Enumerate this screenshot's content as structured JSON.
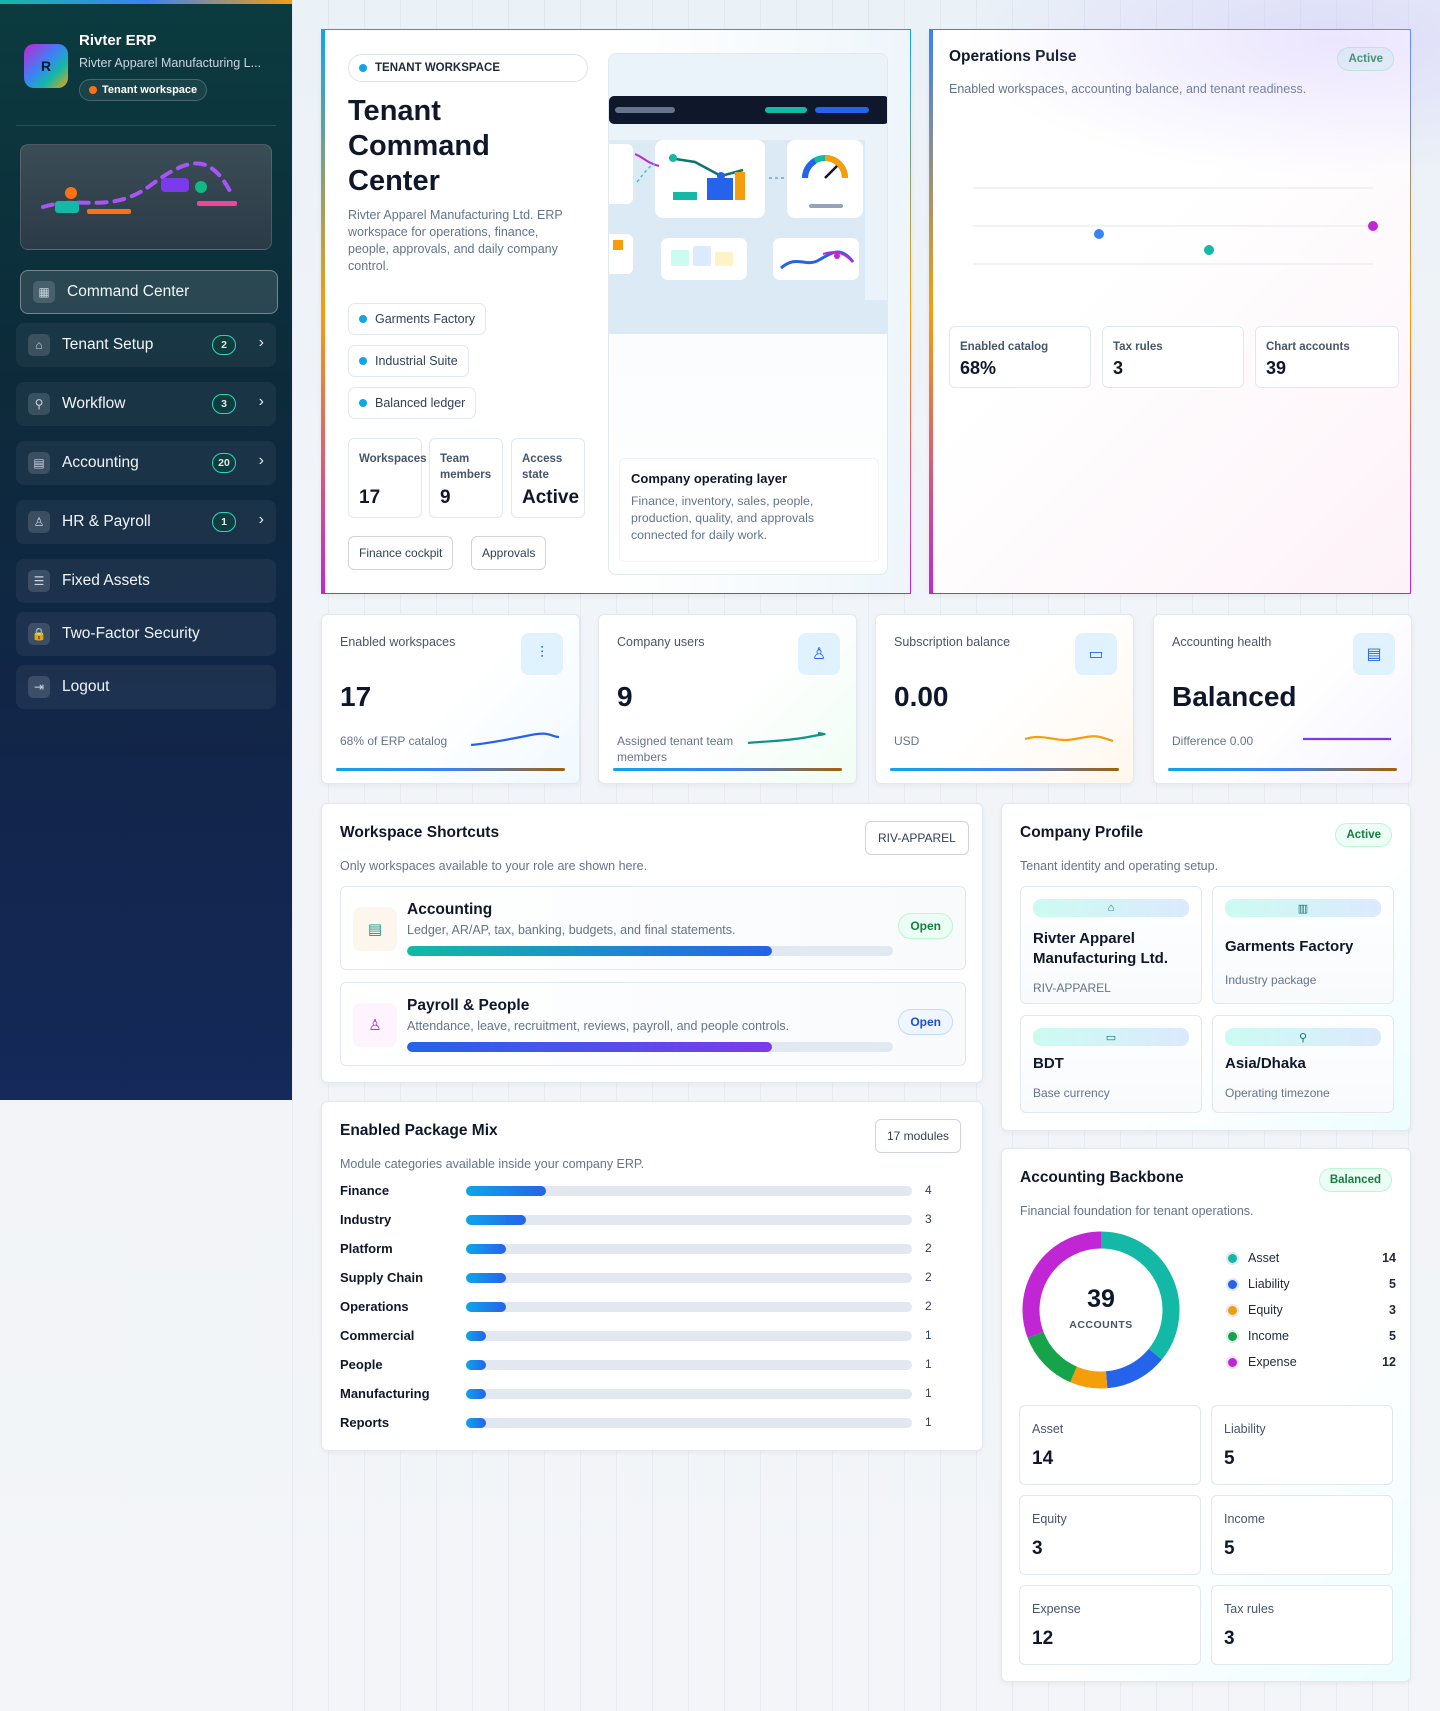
{
  "sidebar": {
    "brand_title": "Rivter ERP",
    "brand_subtitle": "Rivter Apparel Manufacturing L...",
    "logo_letter": "R",
    "tenant_pill": "Tenant workspace",
    "items": [
      {
        "label": "Command Center",
        "icon": "grid-icon",
        "active": true
      },
      {
        "label": "Tenant Setup",
        "icon": "building-icon",
        "badge": "2"
      },
      {
        "label": "Workflow",
        "icon": "workflow-icon",
        "badge": "3"
      },
      {
        "label": "Accounting",
        "icon": "ledger-icon",
        "badge": "20"
      },
      {
        "label": "HR & Payroll",
        "icon": "user-icon",
        "badge": "1"
      },
      {
        "label": "Fixed Assets",
        "icon": "asset-icon"
      },
      {
        "label": "Two-Factor Security",
        "icon": "lock-icon"
      },
      {
        "label": "Logout",
        "icon": "logout-icon"
      }
    ]
  },
  "hero": {
    "eyebrow": "TENANT WORKSPACE",
    "title": "Tenant Command Center",
    "description": "Rivter Apparel Manufacturing Ltd. ERP workspace for operations, finance, people, approvals, and daily company control.",
    "chips": [
      "Garments Factory",
      "Industrial Suite",
      "Balanced ledger"
    ],
    "stats": [
      {
        "label": "Workspaces",
        "value": "17"
      },
      {
        "label": "Team members",
        "value": "9"
      },
      {
        "label": "Access state",
        "value": "Active"
      }
    ],
    "buttons": [
      "Finance cockpit",
      "Approvals"
    ],
    "layer_title": "Company operating layer",
    "layer_text": "Finance, inventory, sales, people, production, quality, and approvals connected for daily work."
  },
  "pulse": {
    "title": "Operations Pulse",
    "status": "Active",
    "subtitle": "Enabled workspaces, accounting balance, and tenant readiness.",
    "stats": [
      {
        "label": "Enabled catalog",
        "value": "68%"
      },
      {
        "label": "Tax rules",
        "value": "3"
      },
      {
        "label": "Chart accounts",
        "value": "39"
      }
    ]
  },
  "kpis": [
    {
      "label": "Enabled workspaces",
      "value": "17",
      "foot": "68% of ERP catalog",
      "icon": "sliders-icon",
      "spark": "#2563eb"
    },
    {
      "label": "Company users",
      "value": "9",
      "foot": "Assigned tenant team members",
      "icon": "users-icon",
      "spark": "#0d9488"
    },
    {
      "label": "Subscription balance",
      "value": "0.00",
      "foot": "USD",
      "icon": "card-icon",
      "spark": "#f59e0b"
    },
    {
      "label": "Accounting health",
      "value": "Balanced",
      "foot": "Difference 0.00",
      "icon": "book-icon",
      "spark": "#7c3aed"
    }
  ],
  "shortcuts": {
    "title": "Workspace Shortcuts",
    "code": "RIV-APPAREL",
    "subtitle": "Only workspaces available to your role are shown here.",
    "items": [
      {
        "title": "Accounting",
        "desc": "Ledger, AR/AP, tax, banking, budgets, and final statements.",
        "action": "Open",
        "progress": 0.75
      },
      {
        "title": "Payroll & People",
        "desc": "Attendance, leave, recruitment, reviews, payroll, and people controls.",
        "action": "Open",
        "progress": 0.75
      }
    ]
  },
  "packages": {
    "title": "Enabled Package Mix",
    "count": "17 modules",
    "subtitle": "Module categories available inside your company ERP.",
    "rows": [
      {
        "name": "Finance",
        "value": 4
      },
      {
        "name": "Industry",
        "value": 3
      },
      {
        "name": "Platform",
        "value": 2
      },
      {
        "name": "Supply Chain",
        "value": 2
      },
      {
        "name": "Operations",
        "value": 2
      },
      {
        "name": "Commercial",
        "value": 1
      },
      {
        "name": "People",
        "value": 1
      },
      {
        "name": "Manufacturing",
        "value": 1
      },
      {
        "name": "Reports",
        "value": 1
      }
    ]
  },
  "profile": {
    "title": "Company Profile",
    "status": "Active",
    "subtitle": "Tenant identity and operating setup.",
    "tiles": [
      {
        "title": "Rivter Apparel Manufacturing Ltd.",
        "sub": "RIV-APPAREL",
        "icon": "building-icon"
      },
      {
        "title": "Garments Factory",
        "sub": "Industry package",
        "icon": "factory-icon"
      },
      {
        "title": "BDT",
        "sub": "Base currency",
        "icon": "card-icon"
      },
      {
        "title": "Asia/Dhaka",
        "sub": "Operating timezone",
        "icon": "workflow-icon"
      }
    ]
  },
  "backbone": {
    "title": "Accounting Backbone",
    "status": "Balanced",
    "subtitle": "Financial foundation for tenant operations.",
    "total": "39",
    "total_label": "ACCOUNTS",
    "legend": [
      {
        "name": "Asset",
        "value": 14,
        "color": "#14b8a6"
      },
      {
        "name": "Liability",
        "value": 5,
        "color": "#2563eb"
      },
      {
        "name": "Equity",
        "value": 3,
        "color": "#f59e0b"
      },
      {
        "name": "Income",
        "value": 5,
        "color": "#16a34a"
      },
      {
        "name": "Expense",
        "value": 12,
        "color": "#c026d3"
      }
    ],
    "tiles": [
      {
        "label": "Asset",
        "value": "14"
      },
      {
        "label": "Liability",
        "value": "5"
      },
      {
        "label": "Equity",
        "value": "3"
      },
      {
        "label": "Income",
        "value": "5"
      },
      {
        "label": "Expense",
        "value": "12"
      },
      {
        "label": "Tax rules",
        "value": "3"
      }
    ]
  }
}
